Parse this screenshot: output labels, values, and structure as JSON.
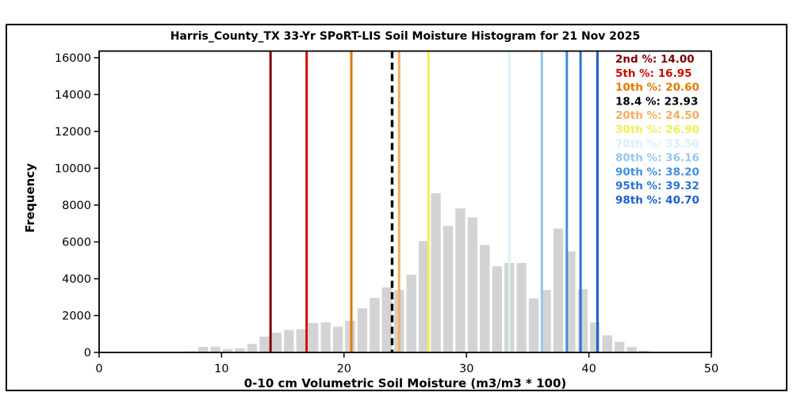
{
  "chart_data": {
    "type": "bar",
    "title": "Harris_County_TX 33-Yr SPoRT-LIS Soil Moisture Histogram for 21 Nov 2025",
    "xlabel": "0-10 cm Volumetric Soil Moisture (m3/m3 * 100)",
    "ylabel": "Frequency",
    "xlim": [
      0,
      50
    ],
    "ylim": [
      0,
      16360
    ],
    "xticks": [
      0,
      10,
      20,
      30,
      40,
      50
    ],
    "yticks": [
      0,
      2000,
      4000,
      6000,
      8000,
      10000,
      12000,
      14000,
      16000
    ],
    "grid": false,
    "legend_position": "upper right",
    "bar_color": "#d3d3d3",
    "bin_width": 1,
    "bar_rel_width": 0.8,
    "bin_starts": [
      5,
      6,
      7,
      8,
      9,
      10,
      11,
      12,
      13,
      14,
      15,
      16,
      17,
      18,
      19,
      20,
      21,
      22,
      23,
      24,
      25,
      26,
      27,
      28,
      29,
      30,
      31,
      32,
      33,
      34,
      35,
      36,
      37,
      38,
      39,
      40,
      41,
      42,
      43,
      44
    ],
    "values": [
      30,
      40,
      60,
      300,
      310,
      190,
      230,
      460,
      860,
      1070,
      1220,
      1260,
      1600,
      1640,
      1400,
      1720,
      2390,
      2960,
      3530,
      3390,
      4220,
      6050,
      8640,
      6870,
      7820,
      7330,
      5840,
      4680,
      4860,
      4860,
      2930,
      3390,
      6730,
      5480,
      3430,
      1630,
      930,
      570,
      290,
      100
    ],
    "percentiles": [
      {
        "label": "2nd %",
        "value_text": "14.00",
        "value": 14.0,
        "color": "#7f0000",
        "style": "solid"
      },
      {
        "label": "5th %",
        "value_text": "16.95",
        "value": 16.95,
        "color": "#cb0b00",
        "style": "solid"
      },
      {
        "label": "10th %",
        "value_text": "20.60",
        "value": 20.6,
        "color": "#e17a00",
        "style": "solid"
      },
      {
        "label": "18.4 %",
        "value_text": "23.93",
        "value": 23.93,
        "color": "#000000",
        "style": "dashed"
      },
      {
        "label": "20th %",
        "value_text": "24.50",
        "value": 24.5,
        "color": "#fcab60",
        "style": "solid"
      },
      {
        "label": "30th %",
        "value_text": "26.90",
        "value": 26.9,
        "color": "#f0ee57",
        "style": "solid"
      },
      {
        "label": "70th %",
        "value_text": "33.50",
        "value": 33.5,
        "color": "#d9f0f6",
        "style": "solid"
      },
      {
        "label": "80th %",
        "value_text": "36.16",
        "value": 36.16,
        "color": "#94c6f0",
        "style": "solid"
      },
      {
        "label": "90th %",
        "value_text": "38.20",
        "value": 38.2,
        "color": "#418fe0",
        "style": "solid"
      },
      {
        "label": "95th %",
        "value_text": "39.32",
        "value": 39.32,
        "color": "#2b75d5",
        "style": "solid"
      },
      {
        "label": "98th %",
        "value_text": "40.70",
        "value": 40.7,
        "color": "#1a60c9",
        "style": "solid"
      }
    ]
  }
}
